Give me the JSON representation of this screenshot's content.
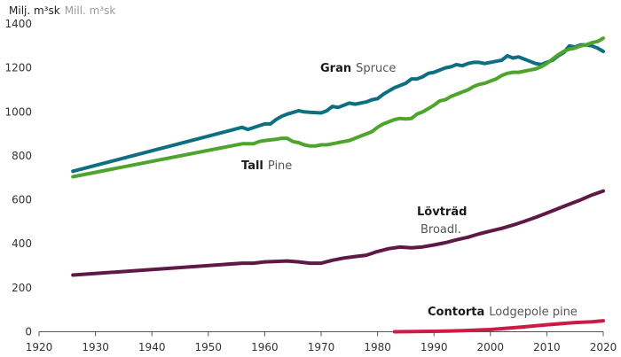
{
  "chart_data": {
    "type": "line",
    "ylabel": {
      "sv": "Milj. m³sk",
      "en": "Mill. m³sk"
    },
    "xlim": [
      1920,
      2020
    ],
    "ylim": [
      0,
      1400
    ],
    "xticks": [
      "1920",
      "1930",
      "1940",
      "1950",
      "1960",
      "1970",
      "1980",
      "1990",
      "2000",
      "2010",
      "2020"
    ],
    "yticks": [
      "0",
      "200",
      "400",
      "600",
      "800",
      "1000",
      "1200",
      "1400"
    ],
    "grid": false,
    "legend": "inline labels",
    "series": [
      {
        "name": "Gran Spruce",
        "label_sv": "Gran",
        "label_en": "Spruce",
        "color": "#0e6f80",
        "points": [
          [
            1926,
            730
          ],
          [
            1956,
            930
          ],
          [
            1957,
            920
          ],
          [
            1960,
            945
          ],
          [
            1961,
            945
          ],
          [
            1962,
            965
          ],
          [
            1963,
            980
          ],
          [
            1964,
            990
          ],
          [
            1966,
            1005
          ],
          [
            1967,
            1000
          ],
          [
            1968,
            998
          ],
          [
            1970,
            995
          ],
          [
            1971,
            1005
          ],
          [
            1972,
            1025
          ],
          [
            1973,
            1020
          ],
          [
            1975,
            1040
          ],
          [
            1976,
            1035
          ],
          [
            1977,
            1040
          ],
          [
            1978,
            1045
          ],
          [
            1979,
            1055
          ],
          [
            1980,
            1060
          ],
          [
            1981,
            1080
          ],
          [
            1982,
            1095
          ],
          [
            1983,
            1110
          ],
          [
            1984,
            1120
          ],
          [
            1985,
            1130
          ],
          [
            1986,
            1150
          ],
          [
            1987,
            1150
          ],
          [
            1988,
            1160
          ],
          [
            1989,
            1175
          ],
          [
            1990,
            1180
          ],
          [
            1991,
            1190
          ],
          [
            1992,
            1200
          ],
          [
            1993,
            1205
          ],
          [
            1994,
            1215
          ],
          [
            1995,
            1210
          ],
          [
            1996,
            1220
          ],
          [
            1997,
            1225
          ],
          [
            1998,
            1225
          ],
          [
            1999,
            1220
          ],
          [
            2000,
            1225
          ],
          [
            2001,
            1230
          ],
          [
            2002,
            1235
          ],
          [
            2003,
            1255
          ],
          [
            2004,
            1245
          ],
          [
            2005,
            1250
          ],
          [
            2006,
            1240
          ],
          [
            2007,
            1230
          ],
          [
            2008,
            1220
          ],
          [
            2009,
            1215
          ],
          [
            2010,
            1225
          ],
          [
            2011,
            1235
          ],
          [
            2012,
            1255
          ],
          [
            2013,
            1270
          ],
          [
            2014,
            1300
          ],
          [
            2015,
            1295
          ],
          [
            2016,
            1305
          ],
          [
            2017,
            1305
          ],
          [
            2018,
            1300
          ],
          [
            2019,
            1290
          ],
          [
            2020,
            1275
          ]
        ]
      },
      {
        "name": "Tall Pine",
        "label_sv": "Tall",
        "label_en": "Pine",
        "color": "#4ea42c",
        "points": [
          [
            1926,
            705
          ],
          [
            1956,
            855
          ],
          [
            1958,
            855
          ],
          [
            1959,
            865
          ],
          [
            1960,
            870
          ],
          [
            1962,
            875
          ],
          [
            1963,
            880
          ],
          [
            1964,
            880
          ],
          [
            1965,
            865
          ],
          [
            1966,
            860
          ],
          [
            1967,
            850
          ],
          [
            1968,
            845
          ],
          [
            1969,
            845
          ],
          [
            1970,
            850
          ],
          [
            1971,
            850
          ],
          [
            1972,
            855
          ],
          [
            1974,
            865
          ],
          [
            1975,
            870
          ],
          [
            1976,
            880
          ],
          [
            1977,
            890
          ],
          [
            1978,
            900
          ],
          [
            1979,
            910
          ],
          [
            1980,
            930
          ],
          [
            1981,
            945
          ],
          [
            1982,
            955
          ],
          [
            1983,
            965
          ],
          [
            1984,
            970
          ],
          [
            1985,
            968
          ],
          [
            1986,
            970
          ],
          [
            1987,
            990
          ],
          [
            1988,
            1000
          ],
          [
            1989,
            1015
          ],
          [
            1990,
            1030
          ],
          [
            1991,
            1050
          ],
          [
            1992,
            1055
          ],
          [
            1993,
            1070
          ],
          [
            1994,
            1080
          ],
          [
            1995,
            1090
          ],
          [
            1996,
            1100
          ],
          [
            1997,
            1115
          ],
          [
            1998,
            1125
          ],
          [
            1999,
            1130
          ],
          [
            2000,
            1140
          ],
          [
            2001,
            1150
          ],
          [
            2002,
            1165
          ],
          [
            2003,
            1175
          ],
          [
            2004,
            1180
          ],
          [
            2005,
            1180
          ],
          [
            2006,
            1185
          ],
          [
            2007,
            1190
          ],
          [
            2008,
            1195
          ],
          [
            2009,
            1205
          ],
          [
            2010,
            1220
          ],
          [
            2011,
            1240
          ],
          [
            2012,
            1260
          ],
          [
            2013,
            1275
          ],
          [
            2014,
            1285
          ],
          [
            2015,
            1290
          ],
          [
            2016,
            1300
          ],
          [
            2017,
            1305
          ],
          [
            2018,
            1315
          ],
          [
            2019,
            1320
          ],
          [
            2020,
            1335
          ]
        ]
      },
      {
        "name": "Lövträd Broadl.",
        "label_sv": "Lövträd",
        "label_en": "Broadl.",
        "color": "#5e1a45",
        "points": [
          [
            1926,
            258
          ],
          [
            1956,
            312
          ],
          [
            1958,
            312
          ],
          [
            1960,
            318
          ],
          [
            1962,
            320
          ],
          [
            1964,
            322
          ],
          [
            1966,
            318
          ],
          [
            1968,
            312
          ],
          [
            1970,
            312
          ],
          [
            1972,
            325
          ],
          [
            1974,
            335
          ],
          [
            1976,
            342
          ],
          [
            1978,
            348
          ],
          [
            1980,
            365
          ],
          [
            1982,
            378
          ],
          [
            1984,
            385
          ],
          [
            1986,
            382
          ],
          [
            1988,
            386
          ],
          [
            1990,
            395
          ],
          [
            1992,
            405
          ],
          [
            1994,
            418
          ],
          [
            1996,
            430
          ],
          [
            1998,
            445
          ],
          [
            2000,
            458
          ],
          [
            2002,
            470
          ],
          [
            2004,
            485
          ],
          [
            2006,
            502
          ],
          [
            2008,
            520
          ],
          [
            2010,
            540
          ],
          [
            2012,
            560
          ],
          [
            2014,
            580
          ],
          [
            2016,
            600
          ],
          [
            2018,
            622
          ],
          [
            2020,
            640
          ]
        ]
      },
      {
        "name": "Contorta Lodgepole pine",
        "label_sv": "Contorta",
        "label_en": "Lodgepole pine",
        "color": "#cc1b45",
        "points": [
          [
            1983,
            0
          ],
          [
            1990,
            2
          ],
          [
            1995,
            5
          ],
          [
            2000,
            10
          ],
          [
            2005,
            20
          ],
          [
            2010,
            32
          ],
          [
            2015,
            42
          ],
          [
            2018,
            45
          ],
          [
            2020,
            50
          ]
        ]
      }
    ]
  }
}
